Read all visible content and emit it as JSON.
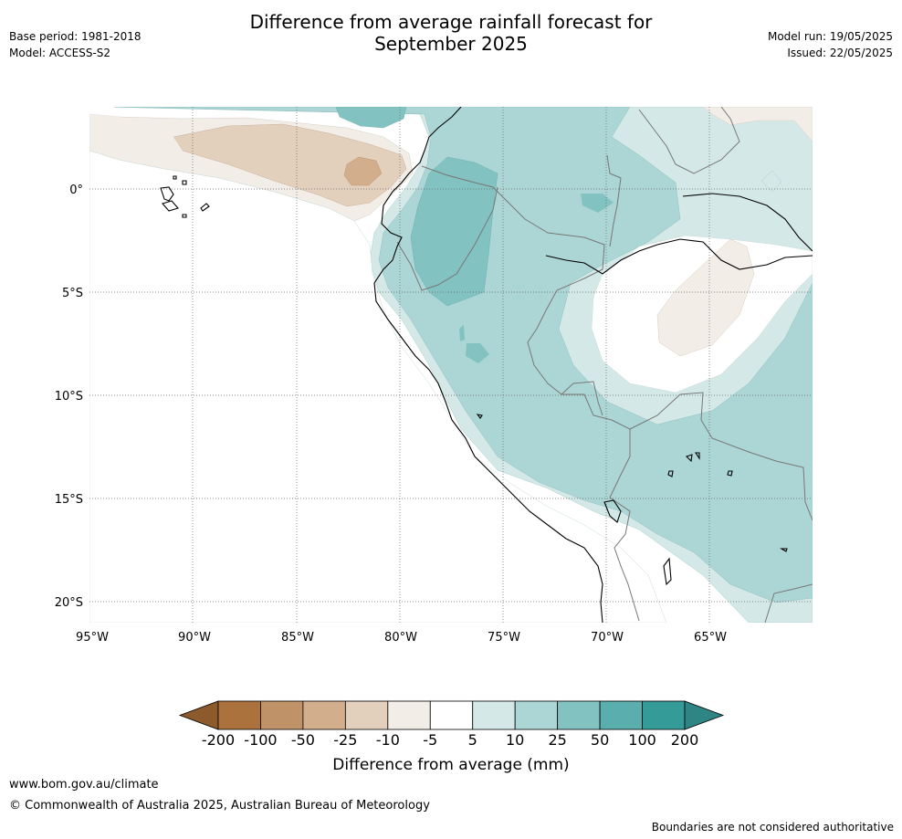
{
  "title_line1": "Difference from average rainfall forecast for",
  "title_line2": "September 2025",
  "base_period": "Base period: 1981-2018",
  "model": "Model: ACCESS-S2",
  "model_run": "Model run: 19/05/2025",
  "issued": "Issued: 22/05/2025",
  "lat_ticks": [
    "0°",
    "5°S",
    "10°S",
    "15°S",
    "20°S"
  ],
  "lon_ticks": [
    "95°W",
    "90°W",
    "85°W",
    "80°W",
    "75°W",
    "70°W",
    "65°W"
  ],
  "colorbar": {
    "labels": [
      "-200",
      "-100",
      "-50",
      "-25",
      "-10",
      "-5",
      "5",
      "10",
      "25",
      "50",
      "100",
      "200"
    ],
    "colors": [
      "#8c5a2b",
      "#ac723d",
      "#c09268",
      "#d2ae8c",
      "#e2cfbc",
      "#f2ede7",
      "#ffffff",
      "#d4e9e7",
      "#acd6d5",
      "#82c2c0",
      "#5aaead",
      "#359b98",
      "#2f8583"
    ],
    "title": "Difference from average (mm)"
  },
  "footer": {
    "url": "www.bom.gov.au/climate",
    "copyright": "© Commonwealth of Australia 2025, Australian Bureau of Meteorology",
    "disclaimer": "Boundaries are not considered authoritative"
  }
}
